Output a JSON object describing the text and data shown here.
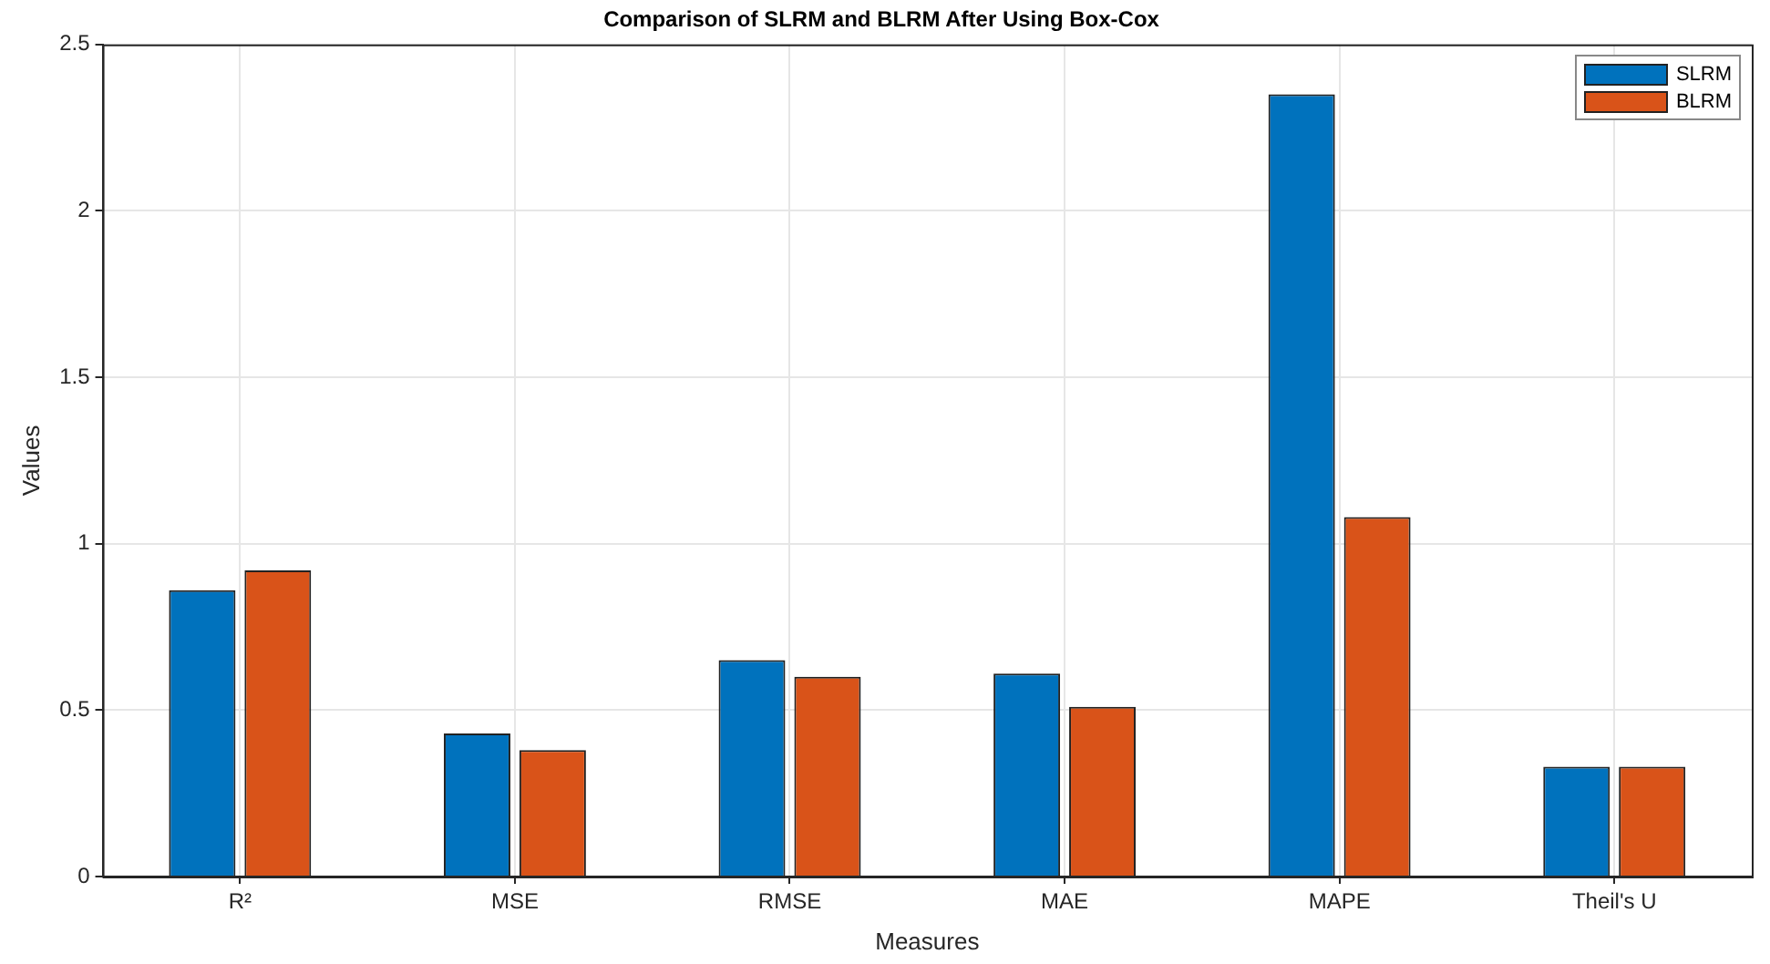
{
  "chart_data": {
    "type": "bar",
    "title": "Comparison of SLRM and BLRM After Using Box-Cox",
    "xlabel": "Measures",
    "ylabel": "Values",
    "categories": [
      "R²",
      "MSE",
      "RMSE",
      "MAE",
      "MAPE",
      "Theil's U"
    ],
    "series": [
      {
        "name": "SLRM",
        "color": "#0072bd",
        "values": [
          0.86,
          0.43,
          0.65,
          0.61,
          2.35,
          0.33
        ]
      },
      {
        "name": "BLRM",
        "color": "#d95319",
        "values": [
          0.92,
          0.38,
          0.6,
          0.51,
          1.08,
          0.33
        ]
      }
    ],
    "ylim": [
      0,
      2.5
    ],
    "yticks": [
      0,
      0.5,
      1,
      1.5,
      2,
      2.5
    ],
    "grid": true,
    "legend": "top right"
  }
}
